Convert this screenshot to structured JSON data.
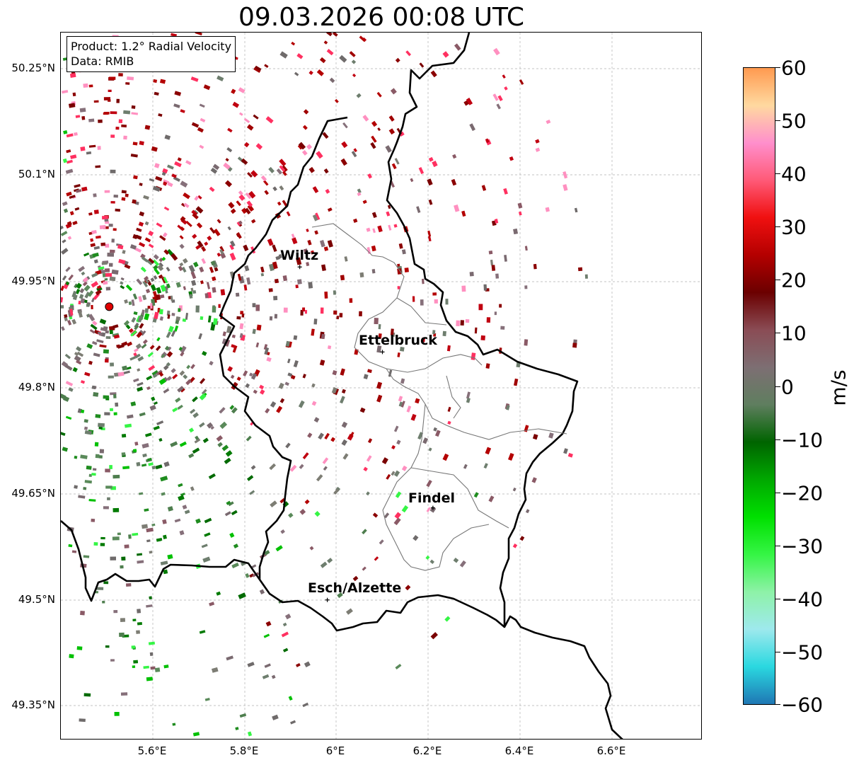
{
  "title": "09.03.2026 00:08 UTC",
  "info_box": {
    "product": "Product: 1.2° Radial Velocity",
    "data": "Data: RMIB"
  },
  "axes": {
    "lat_ticks": [
      "50.25°N",
      "50.1°N",
      "49.95°N",
      "49.8°N",
      "49.65°N",
      "49.5°N",
      "49.35°N"
    ],
    "lon_ticks": [
      "5.6°E",
      "5.8°E",
      "6°E",
      "6.2°E",
      "6.4°E",
      "6.6°E"
    ]
  },
  "cities": [
    {
      "name": "Wiltz",
      "lon": 5.92,
      "lat": 49.97
    },
    {
      "name": "Ettelbruck",
      "lon": 6.1,
      "lat": 49.85
    },
    {
      "name": "Findel",
      "lon": 6.21,
      "lat": 49.63
    },
    {
      "name": "Esch/Alzette",
      "lon": 5.98,
      "lat": 49.5
    }
  ],
  "radar_site": {
    "lon": 5.505,
    "lat": 49.914
  },
  "colorbar": {
    "label": "m/s",
    "ticks": [
      "60",
      "50",
      "40",
      "30",
      "20",
      "10",
      "0",
      "−10",
      "−20",
      "−30",
      "−40",
      "−50",
      "−60"
    ],
    "min": -60,
    "max": 60,
    "stops": [
      "#1f77b4",
      "#2ad8e0",
      "#9ee9ed",
      "#8ef2a8",
      "#35f545",
      "#00e000",
      "#00a800",
      "#006400",
      "#5f7e5f",
      "#7d6f73",
      "#8a4c55",
      "#6b0000",
      "#b40000",
      "#f01010",
      "#ff5a78",
      "#ff8fcc",
      "#ffd9a0",
      "#ff9a50"
    ]
  },
  "colors": {
    "inbound_green": "#1f8c1f",
    "outbound_red": "#a00000",
    "zero_grey": "#7a7a70",
    "site_marker": "#e00000"
  }
}
